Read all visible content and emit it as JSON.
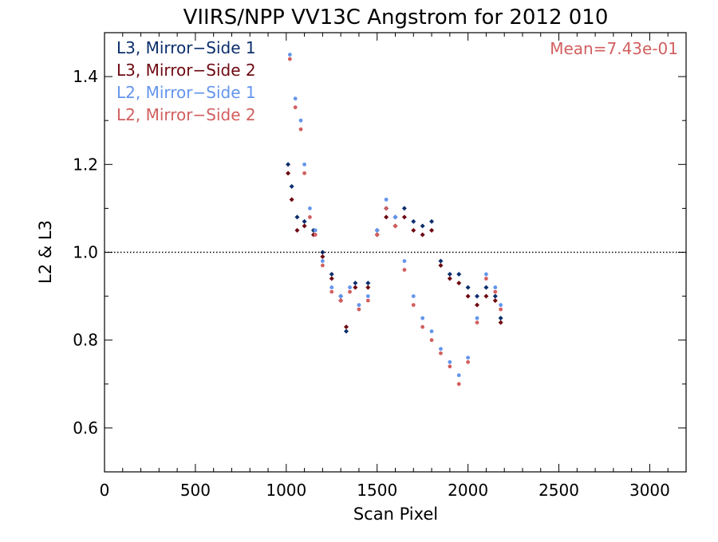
{
  "chart_data": {
    "type": "scatter",
    "title": "VIIRS/NPP VV13C Angstrom for 2012 010",
    "xlabel": "Scan Pixel",
    "ylabel": "L2 & L3",
    "xlim": [
      0,
      3200
    ],
    "ylim": [
      0.5,
      1.5
    ],
    "x_ticks": [
      0,
      500,
      1000,
      1500,
      2000,
      2500,
      3000
    ],
    "x_tick_labels": [
      "0",
      "500",
      "1000",
      "1500",
      "2000",
      "2500",
      "3000"
    ],
    "y_ticks": [
      0.6,
      0.8,
      1.0,
      1.2,
      1.4
    ],
    "y_tick_labels": [
      "0.6",
      "0.8",
      "1.0",
      "1.2",
      "1.4"
    ],
    "reference_line": 1.0,
    "reference_line_style": "dotted",
    "annotation": "Mean=7.43e-01",
    "legend_position": "top-left",
    "series": [
      {
        "name": "L3, Mirror−Side 1",
        "color": "#0b2e6b",
        "marker": "diamond",
        "x": [
          1010,
          1030,
          1060,
          1100,
          1150,
          1200,
          1250,
          1300,
          1330,
          1380,
          1450,
          1500,
          1550,
          1600,
          1650,
          1700,
          1750,
          1800,
          1850,
          1900,
          1950,
          2000,
          2050,
          2100,
          2150,
          2180
        ],
        "y": [
          1.2,
          1.15,
          1.08,
          1.07,
          1.05,
          1.0,
          0.95,
          0.9,
          0.82,
          0.93,
          0.93,
          1.05,
          1.1,
          1.08,
          1.1,
          1.07,
          1.06,
          1.07,
          0.98,
          0.95,
          0.95,
          0.92,
          0.9,
          0.92,
          0.9,
          0.85
        ]
      },
      {
        "name": "L3, Mirror−Side 2",
        "color": "#6e0a12",
        "marker": "diamond",
        "x": [
          1010,
          1030,
          1060,
          1100,
          1150,
          1200,
          1250,
          1300,
          1330,
          1380,
          1450,
          1500,
          1550,
          1600,
          1650,
          1700,
          1750,
          1800,
          1850,
          1900,
          1950,
          2000,
          2050,
          2100,
          2150,
          2180
        ],
        "y": [
          1.18,
          1.12,
          1.05,
          1.06,
          1.04,
          0.99,
          0.94,
          0.89,
          0.83,
          0.92,
          0.92,
          1.04,
          1.08,
          1.06,
          1.08,
          1.05,
          1.04,
          1.05,
          0.97,
          0.94,
          0.93,
          0.9,
          0.88,
          0.9,
          0.89,
          0.84
        ]
      },
      {
        "name": "L2, Mirror−Side 1",
        "color": "#6495ed",
        "marker": "dot",
        "x": [
          1020,
          1050,
          1080,
          1100,
          1130,
          1160,
          1200,
          1250,
          1300,
          1350,
          1400,
          1450,
          1500,
          1550,
          1600,
          1650,
          1700,
          1750,
          1800,
          1850,
          1900,
          1950,
          2000,
          2050,
          2100,
          2150,
          2180
        ],
        "y": [
          1.45,
          1.35,
          1.3,
          1.2,
          1.1,
          1.05,
          0.98,
          0.92,
          0.9,
          0.92,
          0.88,
          0.9,
          1.05,
          1.12,
          1.08,
          0.98,
          0.9,
          0.85,
          0.82,
          0.78,
          0.75,
          0.72,
          0.76,
          0.85,
          0.95,
          0.92,
          0.88
        ]
      },
      {
        "name": "L2, Mirror−Side 2",
        "color": "#d25f5f",
        "marker": "dot",
        "x": [
          1020,
          1050,
          1080,
          1100,
          1130,
          1160,
          1200,
          1250,
          1300,
          1350,
          1400,
          1450,
          1500,
          1550,
          1600,
          1650,
          1700,
          1750,
          1800,
          1850,
          1900,
          1950,
          2000,
          2050,
          2100,
          2150,
          2180
        ],
        "y": [
          1.44,
          1.33,
          1.28,
          1.18,
          1.08,
          1.04,
          0.97,
          0.91,
          0.89,
          0.91,
          0.87,
          0.89,
          1.04,
          1.1,
          1.06,
          0.96,
          0.88,
          0.83,
          0.8,
          0.77,
          0.74,
          0.7,
          0.75,
          0.84,
          0.94,
          0.91,
          0.87
        ]
      }
    ]
  }
}
